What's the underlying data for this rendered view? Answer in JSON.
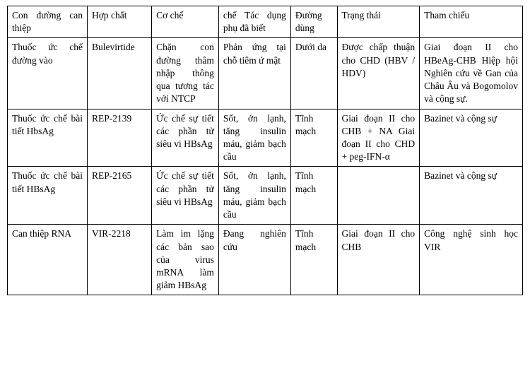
{
  "table": {
    "type": "table",
    "background_color": "#ffffff",
    "border_color": "#000000",
    "font_family": "Times New Roman",
    "font_size_pt": 10,
    "column_widths_pct": [
      15.5,
      12.5,
      13.0,
      14.0,
      9.0,
      16.0,
      20.0
    ],
    "columns": [
      "Con đường can thiệp",
      "Hợp chất",
      "Cơ chế",
      "chế Tác dụng phụ đã biết",
      "Đường dùng",
      "Trạng thái",
      "Tham chiếu"
    ],
    "rows": [
      [
        "Thuốc ức chế đường vào",
        "Bulevirtide",
        "Chặn con đường thâm nhập thông qua tương tác với NTCP",
        "Phản ứng tại chỗ tiêm ứ mật",
        "Dưới da",
        "Được chấp thuận cho CHD (HBV / HDV)",
        "Giai đoạn II cho HBeAg-CHB Hiệp hội Nghiên cứu về Gan của Châu Âu và Bogomolov và cộng sự."
      ],
      [
        "Thuốc ức chế bài tiết HbsAg",
        "REP-2139",
        "Ức chế sự tiết các phần tử siêu vi HBsAg",
        "Sốt, ớn lạnh, tăng insulin máu, giảm bạch cầu",
        "Tĩnh mạch",
        "Giai đoạn II cho CHB + NA Giai đoạn II cho CHD + peg-IFN-α",
        "Bazinet và cộng sự"
      ],
      [
        "Thuốc ức chế bài tiết HBsAg",
        "REP-2165",
        "Ức chế sự tiết các phần tử siêu vi HBsAg",
        "Sốt, ớn lạnh, tăng insulin máu, giảm bạch cầu",
        "Tĩnh mạch",
        "",
        "Bazinet và cộng sự"
      ],
      [
        "Can thiệp RNA",
        "VIR-2218",
        "Làm im lặng các bản sao của virus mRNA làm giảm HBsAg",
        "Đang nghiên cứu",
        "Tĩnh mạch",
        "Giai đoạn II cho CHB",
        "Công nghệ sinh học VIR"
      ]
    ]
  }
}
